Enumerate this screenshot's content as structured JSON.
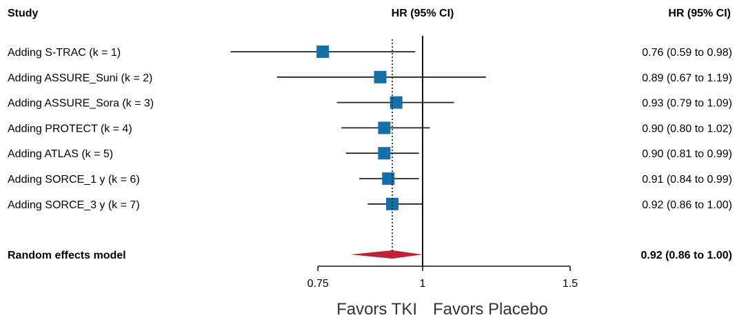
{
  "chart_data": {
    "type": "forest",
    "header": {
      "study": "Study",
      "hr_center": "HR (95% CI)",
      "hr_right": "HR (95% CI)"
    },
    "studies": [
      {
        "label": "Adding S-TRAC (k = 1)",
        "hr": 0.76,
        "lo": 0.59,
        "hi": 0.98,
        "text": "0.76 (0.59 to 0.98)"
      },
      {
        "label": "Adding ASSURE_Suni (k = 2)",
        "hr": 0.89,
        "lo": 0.67,
        "hi": 1.19,
        "text": "0.89 (0.67 to 1.19)"
      },
      {
        "label": "Adding ASSURE_Sora (k = 3)",
        "hr": 0.93,
        "lo": 0.79,
        "hi": 1.09,
        "text": "0.93 (0.79 to 1.09)"
      },
      {
        "label": "Adding PROTECT (k = 4)",
        "hr": 0.9,
        "lo": 0.8,
        "hi": 1.02,
        "text": "0.90 (0.80 to 1.02)"
      },
      {
        "label": "Adding ATLAS (k = 5)",
        "hr": 0.9,
        "lo": 0.81,
        "hi": 0.99,
        "text": "0.90 (0.81 to 0.99)"
      },
      {
        "label": "Adding SORCE_1 y (k = 6)",
        "hr": 0.91,
        "lo": 0.84,
        "hi": 0.99,
        "text": "0.91 (0.84 to 0.99)"
      },
      {
        "label": "Adding SORCE_3 y (k = 7)",
        "hr": 0.92,
        "lo": 0.86,
        "hi": 1.0,
        "text": "0.92 (0.86 to 1.00)"
      }
    ],
    "summary": {
      "label": "Random effects model",
      "hr": 0.92,
      "lo": 0.86,
      "hi": 1.0,
      "text": "0.92 (0.86 to 1.00)"
    },
    "x_ticks": [
      0.75,
      1,
      1.5
    ],
    "x_tick_labels": [
      "0.75",
      "1",
      "1.5"
    ],
    "x_scale": "log",
    "xlim": [
      0.75,
      1.5
    ],
    "reference_line": 1,
    "summary_line": 0.92,
    "favors_left": "Favors TKI",
    "favors_right": "Favors Placebo",
    "colors": {
      "marker": "#1670a8",
      "summary": "#c0203a",
      "line": "#111111"
    }
  }
}
